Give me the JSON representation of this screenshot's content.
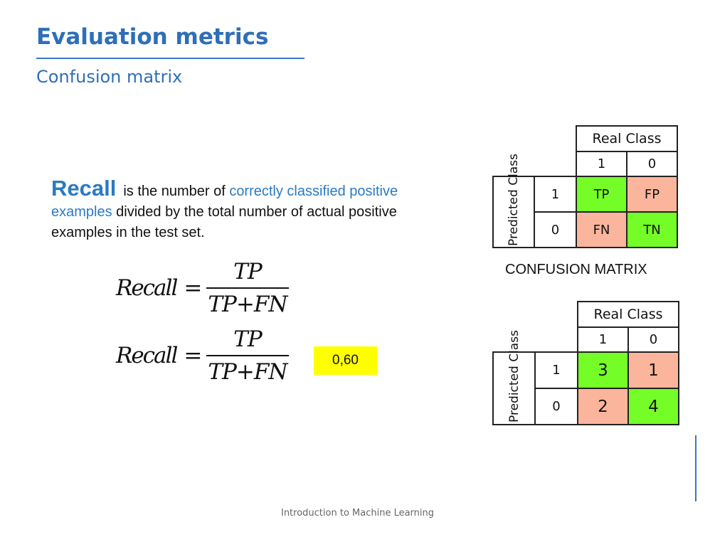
{
  "slide": {
    "title": "Evaluation metrics",
    "subtitle": "Confusion matrix",
    "footer": "Introduction to Machine Learning"
  },
  "definition": {
    "term": "Recall",
    "text_1": "is the number of ",
    "highlight": "correctly classified positive examples",
    "text_2": " divided by the total number of actual positive examples in the test set."
  },
  "formulas": [
    {
      "lhs": "Recall",
      "eq": "=",
      "numerator": "TP",
      "den_left": "TP",
      "den_op": "+",
      "den_right": "FN"
    },
    {
      "lhs": "Recall",
      "eq": "=",
      "numerator": "TP",
      "den_left": "TP",
      "den_op": "+",
      "den_right": "FN"
    }
  ],
  "result": "0,60",
  "matrix_template": {
    "header": "Real Class",
    "col_labels": [
      "1",
      "0"
    ],
    "row_title": "Predicted Class",
    "row_labels": [
      "1",
      "0"
    ],
    "cells": [
      [
        "TP",
        "FP"
      ],
      [
        "FN",
        "TN"
      ]
    ],
    "caption": "CONFUSION MATRIX"
  },
  "matrix_values": {
    "header": "Real Class",
    "col_labels": [
      "1",
      "0"
    ],
    "row_title": "Predicted Class",
    "row_labels": [
      "1",
      "0"
    ],
    "cells": [
      [
        "3",
        "1"
      ],
      [
        "2",
        "4"
      ]
    ]
  },
  "colors": {
    "accent_blue": "#2e6fb7",
    "true_cell": "#75fd27",
    "false_cell": "#fbb59c",
    "result_highlight": "#ffff00"
  }
}
